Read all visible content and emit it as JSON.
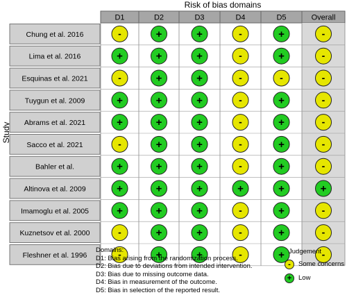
{
  "chart_data": {
    "type": "table",
    "title": "Risk of bias domains",
    "ylabel": "Study",
    "columns": [
      "D1",
      "D2",
      "D3",
      "D4",
      "D5",
      "Overall"
    ],
    "rows": [
      {
        "study": "Chung et al. 2016",
        "judgements": [
          "some",
          "low",
          "low",
          "some",
          "low",
          "some"
        ]
      },
      {
        "study": "Lima et al. 2016",
        "judgements": [
          "low",
          "low",
          "low",
          "some",
          "low",
          "some"
        ]
      },
      {
        "study": "Esquinas et al. 2021",
        "judgements": [
          "some",
          "low",
          "low",
          "some",
          "some",
          "some"
        ]
      },
      {
        "study": "Tuygun et al. 2009",
        "judgements": [
          "low",
          "low",
          "low",
          "some",
          "low",
          "some"
        ]
      },
      {
        "study": "Abrams et al. 2021",
        "judgements": [
          "low",
          "low",
          "low",
          "some",
          "low",
          "some"
        ]
      },
      {
        "study": "Sacco et al.  2021",
        "judgements": [
          "some",
          "low",
          "low",
          "some",
          "low",
          "some"
        ]
      },
      {
        "study": "Bahler et al.",
        "judgements": [
          "low",
          "low",
          "low",
          "some",
          "low",
          "some"
        ]
      },
      {
        "study": "Altinova et al. 2009",
        "judgements": [
          "low",
          "low",
          "low",
          "low",
          "low",
          "low"
        ]
      },
      {
        "study": "Imamoglu et al. 2005",
        "judgements": [
          "low",
          "low",
          "low",
          "some",
          "low",
          "some"
        ]
      },
      {
        "study": "Kuznetsov et al. 2000",
        "judgements": [
          "some",
          "low",
          "low",
          "some",
          "low",
          "some"
        ]
      },
      {
        "study": "Fleshner et al. 1996",
        "judgements": [
          "some",
          "low",
          "low",
          "some",
          "low",
          "some"
        ]
      }
    ],
    "symbols": {
      "some": "-",
      "low": "+"
    },
    "colors": {
      "some": "#e6e600",
      "low": "#22cc22",
      "header": "#a6a6a6",
      "overall_bg": "#d9d9d9",
      "study_bg": "#d0d0d0"
    }
  },
  "legend": {
    "domains_title": "Domains:",
    "domains": [
      "D1: Bias arising from the randomization process.",
      "D2: Bias due to deviations from intended intervention.",
      "D3: Bias due to missing outcome data.",
      "D4: Bias in measurement of the outcome.",
      "D5: Bias in selection of the reported result."
    ],
    "judgement_title": "Judgement",
    "judgement_items": [
      {
        "key": "some",
        "symbol": "-",
        "label": "Some concerns"
      },
      {
        "key": "low",
        "symbol": "+",
        "label": "Low"
      }
    ]
  }
}
